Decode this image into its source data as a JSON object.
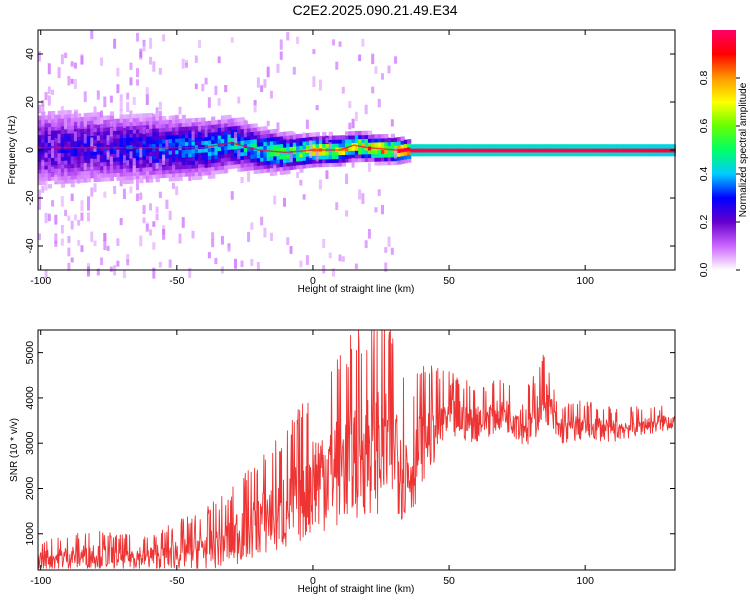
{
  "title": "C2E2.2025.090.21.49.E34",
  "chart_data": [
    {
      "type": "heatmap",
      "xlabel": "Height of straight line (km)",
      "ylabel": "Frequency (Hz)",
      "xlim": [
        -101,
        133
      ],
      "ylim": [
        -50,
        50
      ],
      "xticks": [
        "-100",
        "-50",
        "0",
        "50",
        "100"
      ],
      "yticks": [
        "-40",
        "-20",
        "0",
        "20",
        "40"
      ],
      "colorbar": {
        "label": "Normalized spectral amplitude",
        "range": [
          0,
          1
        ],
        "ticks": [
          "0.0",
          "0.2",
          "0.4",
          "0.6",
          "0.8"
        ],
        "colormap": [
          "#ffffff",
          "#cc66ff",
          "#6600cc",
          "#0000ff",
          "#00ccff",
          "#00ff66",
          "#66ff00",
          "#ffff00",
          "#ff9900",
          "#ff0000",
          "#ff0066"
        ]
      },
      "ridge": {
        "x": [
          -100,
          -80,
          -60,
          -40,
          -30,
          -20,
          -10,
          0,
          10,
          15,
          20,
          30,
          40,
          60,
          100,
          133
        ],
        "frequency": [
          1,
          1,
          1,
          1,
          3,
          0,
          -1,
          0,
          0,
          2,
          1,
          0,
          0,
          0,
          0,
          0
        ],
        "peak_amplitude": [
          0.3,
          0.33,
          0.38,
          0.45,
          0.5,
          0.55,
          0.65,
          0.85,
          0.8,
          0.9,
          0.95,
          0.95,
          1.0,
          1.0,
          1.0,
          0.95
        ]
      }
    },
    {
      "type": "line",
      "xlabel": "Height of straight line (km)",
      "ylabel": "SNR (10 * v/v)",
      "xlim": [
        -101,
        133
      ],
      "ylim": [
        200,
        5500
      ],
      "xticks": [
        "-100",
        "-50",
        "0",
        "50",
        "100"
      ],
      "yticks": [
        "1000",
        "2000",
        "3000",
        "4000",
        "5000"
      ],
      "color": "#ee3333",
      "series": [
        {
          "x": [
            -100,
            -90,
            -80,
            -70,
            -60,
            -50,
            -40,
            -30,
            -20,
            -10,
            0,
            10,
            20,
            30,
            35,
            40,
            50,
            60,
            70,
            80,
            85,
            90,
            100,
            110,
            120,
            133
          ],
          "y": [
            450,
            500,
            550,
            500,
            500,
            600,
            700,
            900,
            1300,
            1600,
            2200,
            2600,
            3000,
            3100,
            2300,
            3100,
            3600,
            3500,
            3700,
            3400,
            4100,
            3300,
            3400,
            3300,
            3400,
            3500
          ],
          "spread": [
            300,
            350,
            400,
            350,
            350,
            500,
            600,
            800,
            1000,
            1300,
            1500,
            1800,
            2000,
            2000,
            1500,
            1200,
            700,
            600,
            500,
            700,
            700,
            450,
            400,
            350,
            300,
            250
          ]
        }
      ]
    }
  ]
}
